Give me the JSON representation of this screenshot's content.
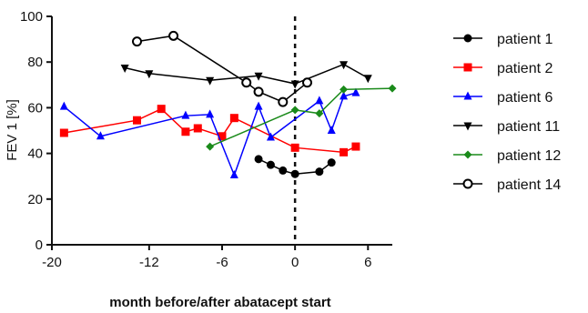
{
  "chart_data": {
    "type": "line",
    "title": "",
    "xlabel": "month before/after abatacept start",
    "ylabel": "FEV 1 [%]",
    "xlim": [
      -20,
      8
    ],
    "ylim": [
      0,
      100
    ],
    "xticks": [
      -20,
      -12,
      -6,
      0,
      6
    ],
    "yticks": [
      0,
      20,
      40,
      60,
      80,
      100
    ],
    "reference_line": {
      "x": 0,
      "style": "dashed"
    },
    "grid": false,
    "legend": "right",
    "series": [
      {
        "name": "patient 1",
        "color": "#000000",
        "marker": "filled-circle",
        "x": [
          -3,
          -2,
          -1,
          0,
          2,
          3
        ],
        "y": [
          37.5,
          35,
          32.5,
          31,
          32,
          36
        ]
      },
      {
        "name": "patient 2",
        "color": "#ff0000",
        "marker": "square",
        "x": [
          -19,
          -13,
          -11,
          -9,
          -8,
          -6,
          -5,
          0,
          4,
          5
        ],
        "y": [
          49,
          54.5,
          59.5,
          49.5,
          51,
          47.5,
          55.5,
          42.5,
          40.5,
          43
        ]
      },
      {
        "name": "patient 6",
        "color": "#0000ff",
        "marker": "triangle-up",
        "x": [
          -19,
          -16,
          -9,
          -7,
          -5,
          -3,
          -2,
          2,
          3,
          4,
          5
        ],
        "y": [
          60.5,
          47.5,
          56.5,
          57,
          30.5,
          60.5,
          47,
          63,
          50,
          65,
          66.5
        ]
      },
      {
        "name": "patient 11",
        "color": "#000000",
        "marker": "triangle-down",
        "x": [
          -14,
          -12,
          -7,
          -3,
          0,
          4,
          6
        ],
        "y": [
          77.5,
          75,
          72,
          74,
          70.5,
          79,
          73
        ]
      },
      {
        "name": "patient 12",
        "color": "#1a8a1a",
        "marker": "diamond",
        "x": [
          -7,
          0,
          2,
          4,
          8
        ],
        "y": [
          43,
          59,
          57.5,
          68,
          68.5
        ]
      },
      {
        "name": "patient 14",
        "color": "#000000",
        "marker": "open-circle",
        "x": [
          -13,
          -10,
          -4,
          -3,
          -1,
          1
        ],
        "y": [
          89,
          91.5,
          71,
          67,
          62.5,
          71
        ]
      }
    ]
  }
}
